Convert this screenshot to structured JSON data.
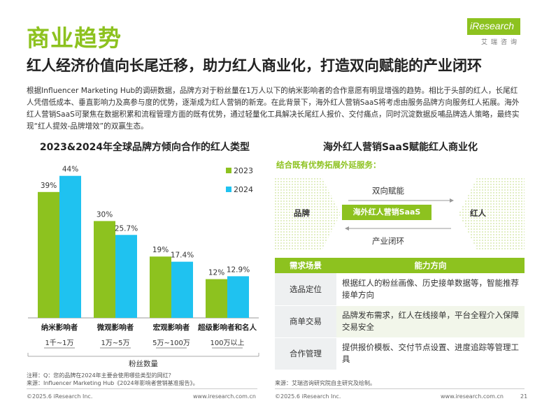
{
  "header": {
    "title": "商业趋势",
    "subtitle": "红人经济价值向长尾迁移，助力红人商业化，打造双向赋能的产业闭环",
    "logo_i": "i",
    "logo_text": "Research",
    "logo_sub": "艾瑞咨询"
  },
  "intro": "根据Influencer Marketing Hub的调研数据，品牌方对于粉丝量在1万人以下的纳米影响者的合作意愿有明显增强的趋势。相比于头部的红人，长尾红人凭借低成本、垂直影响力及高参与度的优势，逐渐成为红人营销的新宠。在此背景下，海外红人营销SaaS将考虑由服务品牌方向服务红人拓展。海外红人营销SaaS可聚焦在数据积累和流程管理方面的既有优势，通过轻量化工具解决长尾红人报价、交付痛点，同时沉淀数据反哺品牌选人策略，最终实现“红人提效-品牌增效”的双赢生态。",
  "left_panel": {
    "title": "2023&2024年全球品牌方倾向合作的红人类型",
    "notes": [
      "注释：Q：您的品牌在2024年主要会使用哪些类型的网红？",
      "来源：Influencer Marketing Hub《2024年影响者营销基准报告》。"
    ]
  },
  "chart_data": {
    "type": "bar",
    "title": "2023&2024年全球品牌方倾向合作的红人类型",
    "categories": [
      "纳米影响者",
      "微观影响者",
      "宏观影响者",
      "超级影响者和名人"
    ],
    "category_ranges": [
      "1千~1万",
      "1万~5万",
      "5万~100万",
      "100万以上"
    ],
    "xlabel": "粉丝数量",
    "ylabel": "",
    "ylim": [
      0,
      50
    ],
    "grid": false,
    "legend_position": "top-right",
    "series": [
      {
        "name": "2023",
        "values": [
          39,
          30,
          19,
          12
        ],
        "labels": [
          "39%",
          "30%",
          "19%",
          "12%"
        ],
        "color": "#8dc21f"
      },
      {
        "name": "2024",
        "values": [
          44,
          25.7,
          17.4,
          12.9
        ],
        "labels": [
          "44%",
          "25.7%",
          "17.4%",
          "12.9%"
        ],
        "color": "#1fc2f0"
      }
    ]
  },
  "right_panel": {
    "title": "海外红人营销SaaS赋能红人商业化",
    "highlight": "结合既有优势拓展外延服务：",
    "flow": {
      "left": "品牌",
      "right": "红人",
      "center": "海外红人营销SaaS",
      "top": "双向赋能",
      "bottom": "产业闭环"
    },
    "table": {
      "headers": [
        "需求场景",
        "能力方向"
      ],
      "rows": [
        [
          "选品定位",
          "根据红人的粉丝画像、历史接单数据等，智能推荐接单方向"
        ],
        [
          "商单交易",
          "品牌发布需求，红人在线接单，平台全程介入保障交易安全"
        ],
        [
          "合作管理",
          "提供报价模板、交付节点设置、进度追踪等管理工具"
        ]
      ]
    },
    "source": "来源：艾瑞咨询研究院自主研究及绘制。"
  },
  "footer": {
    "left_copyright": "©2025.6 iResearch Inc.",
    "left_url": "www.iresearch.com.cn",
    "right_copyright": "©2025.6 iResearch Inc.",
    "right_url": "www.iresearch.com.cn",
    "page_number": "21"
  },
  "colors": {
    "accent_green": "#8dc21f",
    "accent_blue": "#1fc2f0"
  }
}
